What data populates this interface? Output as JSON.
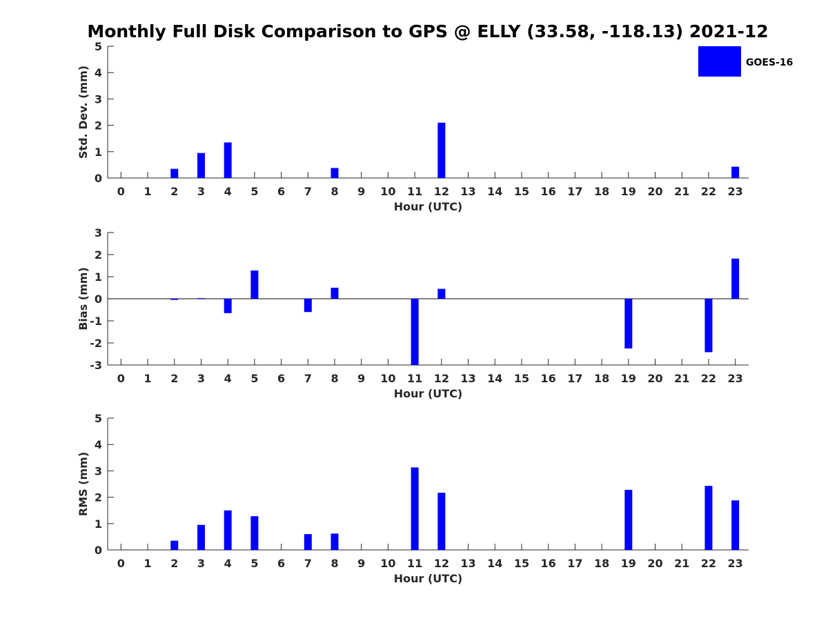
{
  "title": "Monthly Full Disk Comparison to GPS @ ELLY (33.58, -118.13) 2021-12",
  "colors": {
    "bar": "#0000ff",
    "axis": "#262626",
    "zero_line": "#000000"
  },
  "legend": {
    "label": "GOES-16",
    "placement": "top-right"
  },
  "chart_data": [
    {
      "type": "bar",
      "xlabel": "Hour (UTC)",
      "ylabel": "Std. Dev. (mm)",
      "ylim": [
        0,
        5
      ],
      "yticks": [
        "0",
        "1",
        "2",
        "3",
        "4",
        "5"
      ],
      "categories": [
        "0",
        "1",
        "2",
        "3",
        "4",
        "5",
        "6",
        "7",
        "8",
        "9",
        "10",
        "11",
        "12",
        "13",
        "14",
        "15",
        "16",
        "17",
        "18",
        "19",
        "20",
        "21",
        "22",
        "23"
      ],
      "series": [
        {
          "name": "GOES-16",
          "values": [
            0,
            0,
            0.35,
            0.95,
            1.35,
            0,
            0,
            0,
            0.38,
            0,
            0,
            0,
            2.1,
            0,
            0,
            0,
            0,
            0,
            0,
            0,
            0,
            0,
            0,
            0.43
          ]
        }
      ]
    },
    {
      "type": "bar",
      "xlabel": "Hour (UTC)",
      "ylabel": "Bias (mm)",
      "ylim": [
        -3,
        3
      ],
      "yticks": [
        "-3",
        "-2",
        "-1",
        "0",
        "1",
        "2",
        "3"
      ],
      "categories": [
        "0",
        "1",
        "2",
        "3",
        "4",
        "5",
        "6",
        "7",
        "8",
        "9",
        "10",
        "11",
        "12",
        "13",
        "14",
        "15",
        "16",
        "17",
        "18",
        "19",
        "20",
        "21",
        "22",
        "23"
      ],
      "series": [
        {
          "name": "GOES-16",
          "values": [
            0,
            0,
            -0.05,
            0.03,
            -0.65,
            1.28,
            0,
            -0.6,
            0.5,
            0,
            0,
            -3.0,
            0.45,
            0,
            0,
            0,
            0,
            0,
            0,
            -2.25,
            0,
            0,
            -2.42,
            1.82
          ]
        }
      ]
    },
    {
      "type": "bar",
      "xlabel": "Hour (UTC)",
      "ylabel": "RMS (mm)",
      "ylim": [
        0,
        5
      ],
      "yticks": [
        "0",
        "1",
        "2",
        "3",
        "4",
        "5"
      ],
      "categories": [
        "0",
        "1",
        "2",
        "3",
        "4",
        "5",
        "6",
        "7",
        "8",
        "9",
        "10",
        "11",
        "12",
        "13",
        "14",
        "15",
        "16",
        "17",
        "18",
        "19",
        "20",
        "21",
        "22",
        "23"
      ],
      "series": [
        {
          "name": "GOES-16",
          "values": [
            0,
            0,
            0.35,
            0.95,
            1.5,
            1.28,
            0,
            0.6,
            0.62,
            0,
            0,
            3.13,
            2.17,
            0,
            0,
            0,
            0,
            0,
            0,
            2.28,
            0,
            0,
            2.43,
            1.88
          ]
        }
      ]
    }
  ]
}
